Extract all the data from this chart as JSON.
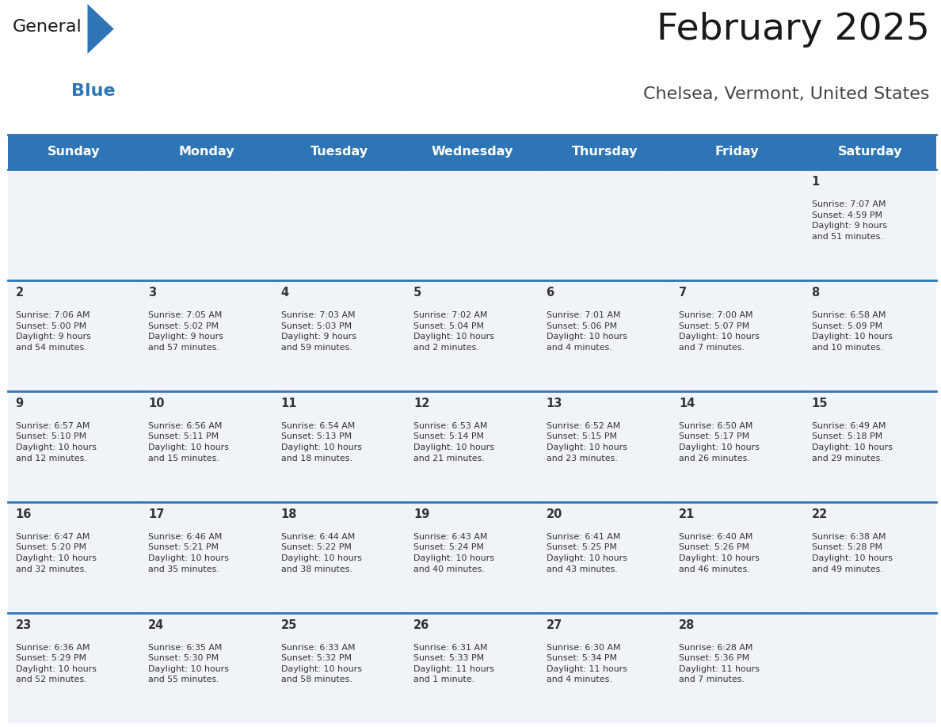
{
  "title": "February 2025",
  "subtitle": "Chelsea, Vermont, United States",
  "days_of_week": [
    "Sunday",
    "Monday",
    "Tuesday",
    "Wednesday",
    "Thursday",
    "Friday",
    "Saturday"
  ],
  "header_bg": "#2E75B6",
  "header_text": "#FFFFFF",
  "cell_bg": "#F0F4F8",
  "border_color": "#2E75B6",
  "text_color": "#333333",
  "calendar_data": [
    [
      null,
      null,
      null,
      null,
      null,
      null,
      {
        "day": 1,
        "sunrise": "7:07 AM",
        "sunset": "4:59 PM",
        "daylight": "9 hours\nand 51 minutes."
      }
    ],
    [
      {
        "day": 2,
        "sunrise": "7:06 AM",
        "sunset": "5:00 PM",
        "daylight": "9 hours\nand 54 minutes."
      },
      {
        "day": 3,
        "sunrise": "7:05 AM",
        "sunset": "5:02 PM",
        "daylight": "9 hours\nand 57 minutes."
      },
      {
        "day": 4,
        "sunrise": "7:03 AM",
        "sunset": "5:03 PM",
        "daylight": "9 hours\nand 59 minutes."
      },
      {
        "day": 5,
        "sunrise": "7:02 AM",
        "sunset": "5:04 PM",
        "daylight": "10 hours\nand 2 minutes."
      },
      {
        "day": 6,
        "sunrise": "7:01 AM",
        "sunset": "5:06 PM",
        "daylight": "10 hours\nand 4 minutes."
      },
      {
        "day": 7,
        "sunrise": "7:00 AM",
        "sunset": "5:07 PM",
        "daylight": "10 hours\nand 7 minutes."
      },
      {
        "day": 8,
        "sunrise": "6:58 AM",
        "sunset": "5:09 PM",
        "daylight": "10 hours\nand 10 minutes."
      }
    ],
    [
      {
        "day": 9,
        "sunrise": "6:57 AM",
        "sunset": "5:10 PM",
        "daylight": "10 hours\nand 12 minutes."
      },
      {
        "day": 10,
        "sunrise": "6:56 AM",
        "sunset": "5:11 PM",
        "daylight": "10 hours\nand 15 minutes."
      },
      {
        "day": 11,
        "sunrise": "6:54 AM",
        "sunset": "5:13 PM",
        "daylight": "10 hours\nand 18 minutes."
      },
      {
        "day": 12,
        "sunrise": "6:53 AM",
        "sunset": "5:14 PM",
        "daylight": "10 hours\nand 21 minutes."
      },
      {
        "day": 13,
        "sunrise": "6:52 AM",
        "sunset": "5:15 PM",
        "daylight": "10 hours\nand 23 minutes."
      },
      {
        "day": 14,
        "sunrise": "6:50 AM",
        "sunset": "5:17 PM",
        "daylight": "10 hours\nand 26 minutes."
      },
      {
        "day": 15,
        "sunrise": "6:49 AM",
        "sunset": "5:18 PM",
        "daylight": "10 hours\nand 29 minutes."
      }
    ],
    [
      {
        "day": 16,
        "sunrise": "6:47 AM",
        "sunset": "5:20 PM",
        "daylight": "10 hours\nand 32 minutes."
      },
      {
        "day": 17,
        "sunrise": "6:46 AM",
        "sunset": "5:21 PM",
        "daylight": "10 hours\nand 35 minutes."
      },
      {
        "day": 18,
        "sunrise": "6:44 AM",
        "sunset": "5:22 PM",
        "daylight": "10 hours\nand 38 minutes."
      },
      {
        "day": 19,
        "sunrise": "6:43 AM",
        "sunset": "5:24 PM",
        "daylight": "10 hours\nand 40 minutes."
      },
      {
        "day": 20,
        "sunrise": "6:41 AM",
        "sunset": "5:25 PM",
        "daylight": "10 hours\nand 43 minutes."
      },
      {
        "day": 21,
        "sunrise": "6:40 AM",
        "sunset": "5:26 PM",
        "daylight": "10 hours\nand 46 minutes."
      },
      {
        "day": 22,
        "sunrise": "6:38 AM",
        "sunset": "5:28 PM",
        "daylight": "10 hours\nand 49 minutes."
      }
    ],
    [
      {
        "day": 23,
        "sunrise": "6:36 AM",
        "sunset": "5:29 PM",
        "daylight": "10 hours\nand 52 minutes."
      },
      {
        "day": 24,
        "sunrise": "6:35 AM",
        "sunset": "5:30 PM",
        "daylight": "10 hours\nand 55 minutes."
      },
      {
        "day": 25,
        "sunrise": "6:33 AM",
        "sunset": "5:32 PM",
        "daylight": "10 hours\nand 58 minutes."
      },
      {
        "day": 26,
        "sunrise": "6:31 AM",
        "sunset": "5:33 PM",
        "daylight": "11 hours\nand 1 minute."
      },
      {
        "day": 27,
        "sunrise": "6:30 AM",
        "sunset": "5:34 PM",
        "daylight": "11 hours\nand 4 minutes."
      },
      {
        "day": 28,
        "sunrise": "6:28 AM",
        "sunset": "5:36 PM",
        "daylight": "11 hours\nand 7 minutes."
      },
      null
    ]
  ]
}
